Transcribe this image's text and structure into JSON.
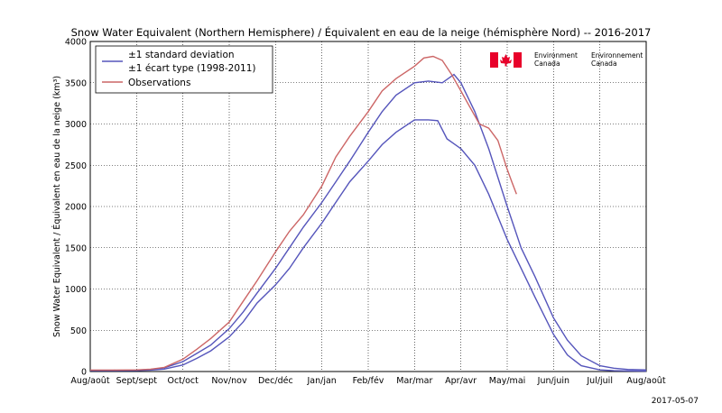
{
  "chart_data": {
    "type": "line",
    "title": "Snow Water Equivalent (Northern Hemisphere) / Équivalent en eau de la neige (hémisphère Nord) -- 2016-2017",
    "ylabel": "Snow Water Equivalent / Équivalent en eau de la neige (km³)",
    "xlabel": "",
    "ylim": [
      0,
      4000
    ],
    "xlim": [
      0,
      12
    ],
    "grid": true,
    "legend_position": "top-left",
    "y_ticks": [
      0,
      500,
      1000,
      1500,
      2000,
      2500,
      3000,
      3500,
      4000
    ],
    "x_tick_labels": [
      "Aug/août",
      "Sept/sept",
      "Oct/oct",
      "Nov/nov",
      "Dec/déc",
      "Jan/jan",
      "Feb/fév",
      "Mar/mar",
      "Apr/avr",
      "May/mai",
      "Jun/juin",
      "Jul/juil",
      "Aug/août"
    ],
    "legend": [
      {
        "label": "±1 standard deviation",
        "color": "#5555bb"
      },
      {
        "label": "±1 écart type (1998-2011)",
        "color": ""
      },
      {
        "label": "Observations",
        "color": "#cc6666"
      }
    ],
    "series": [
      {
        "name": "upper",
        "color": "#5555bb",
        "x": [
          0,
          0.5,
          1,
          1.3,
          1.6,
          2,
          2.3,
          2.6,
          3,
          3.3,
          3.6,
          4,
          4.3,
          4.6,
          5,
          5.3,
          5.6,
          6,
          6.3,
          6.6,
          7,
          7.3,
          7.6,
          7.85,
          8,
          8.3,
          8.6,
          9,
          9.3,
          9.6,
          10,
          10.3,
          10.6,
          11,
          11.3,
          11.6,
          12
        ],
        "y": [
          15,
          15,
          18,
          25,
          45,
          120,
          220,
          320,
          520,
          720,
          950,
          1250,
          1500,
          1750,
          2050,
          2300,
          2550,
          2900,
          3150,
          3350,
          3500,
          3520,
          3500,
          3600,
          3500,
          3150,
          2700,
          2000,
          1500,
          1150,
          650,
          380,
          190,
          70,
          40,
          25,
          20
        ]
      },
      {
        "name": "lower",
        "color": "#5555bb",
        "x": [
          0,
          0.5,
          1,
          1.3,
          1.6,
          2,
          2.3,
          2.6,
          3,
          3.3,
          3.6,
          4,
          4.3,
          4.6,
          5,
          5.3,
          5.6,
          6,
          6.3,
          6.6,
          7,
          7.3,
          7.5,
          7.7,
          8,
          8.3,
          8.6,
          9,
          9.3,
          9.6,
          10,
          10.3,
          10.6,
          11,
          11.3,
          11.6,
          12
        ],
        "y": [
          10,
          10,
          12,
          18,
          30,
          80,
          160,
          250,
          420,
          600,
          830,
          1050,
          1250,
          1500,
          1800,
          2050,
          2300,
          2550,
          2750,
          2900,
          3050,
          3050,
          3040,
          2820,
          2700,
          2500,
          2150,
          1600,
          1250,
          900,
          450,
          200,
          70,
          20,
          10,
          8,
          5
        ]
      },
      {
        "name": "Observations",
        "color": "#cc6666",
        "x": [
          0,
          0.5,
          1,
          1.3,
          1.6,
          2,
          2.3,
          2.6,
          3,
          3.3,
          3.6,
          4,
          4.3,
          4.6,
          5,
          5.3,
          5.6,
          6,
          6.3,
          6.6,
          7,
          7.2,
          7.4,
          7.6,
          7.8,
          8,
          8.2,
          8.4,
          8.6,
          8.8,
          9,
          9.1,
          9.2
        ],
        "y": [
          18,
          18,
          20,
          28,
          50,
          150,
          270,
          400,
          600,
          850,
          1100,
          1450,
          1700,
          1900,
          2250,
          2600,
          2850,
          3150,
          3400,
          3550,
          3700,
          3800,
          3820,
          3770,
          3600,
          3400,
          3200,
          3000,
          2950,
          2800,
          2450,
          2300,
          2150
        ]
      }
    ],
    "logo": {
      "text_en": "Environment\nCanada",
      "text_fr": "Environnement\nCanada",
      "flag_color": "#e8002a"
    }
  },
  "footer_date": "2017-05-07"
}
